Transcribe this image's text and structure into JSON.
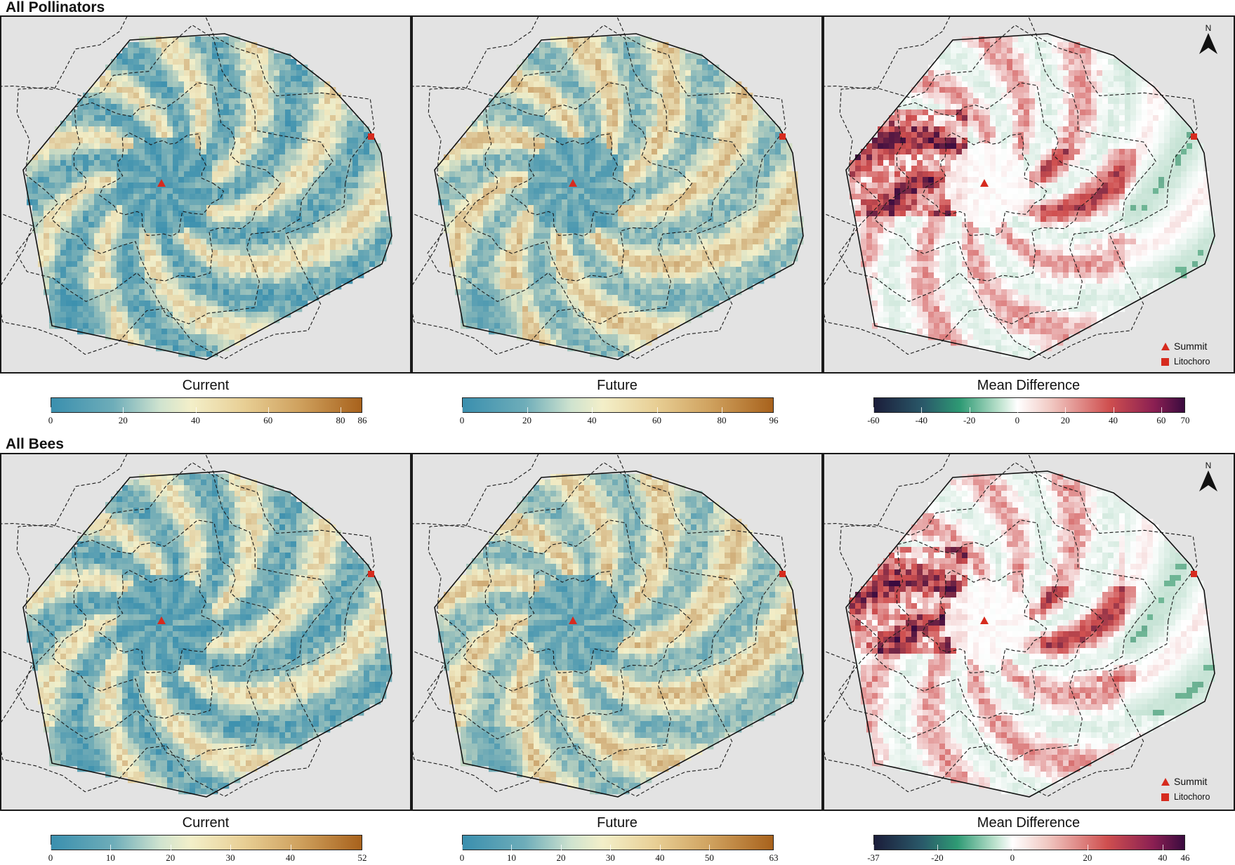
{
  "sections": [
    {
      "title": "All Pollinators",
      "panels": [
        {
          "type": "current",
          "legend_title": "Current",
          "ticks": [
            "0",
            "20",
            "40",
            "60",
            "80",
            "86"
          ],
          "tick_values": [
            0,
            20,
            40,
            60,
            80,
            86
          ],
          "min": 0,
          "max": 86
        },
        {
          "type": "future",
          "legend_title": "Future",
          "ticks": [
            "0",
            "20",
            "40",
            "60",
            "80",
            "96"
          ],
          "tick_values": [
            0,
            20,
            40,
            60,
            80,
            96
          ],
          "min": 0,
          "max": 96
        },
        {
          "type": "diff",
          "legend_title": "Mean Difference",
          "ticks": [
            "-60",
            "-40",
            "-20",
            "0",
            "20",
            "40",
            "60",
            "70"
          ],
          "tick_values": [
            -60,
            -40,
            -20,
            0,
            20,
            40,
            60,
            70
          ],
          "min": -60,
          "max": 70
        }
      ]
    },
    {
      "title": "All Bees",
      "panels": [
        {
          "type": "current",
          "legend_title": "Current",
          "ticks": [
            "0",
            "10",
            "20",
            "30",
            "40",
            "52"
          ],
          "tick_values": [
            0,
            10,
            20,
            30,
            40,
            52
          ],
          "min": 0,
          "max": 52
        },
        {
          "type": "future",
          "legend_title": "Future",
          "ticks": [
            "0",
            "10",
            "20",
            "30",
            "40",
            "50",
            "63"
          ],
          "tick_values": [
            0,
            10,
            20,
            30,
            40,
            50,
            63
          ],
          "min": 0,
          "max": 63
        },
        {
          "type": "diff",
          "legend_title": "Mean Difference",
          "ticks": [
            "-37",
            "-20",
            "0",
            "20",
            "40",
            "46"
          ],
          "tick_values": [
            -37,
            -20,
            0,
            20,
            40,
            46
          ],
          "min": -37,
          "max": 46
        }
      ]
    }
  ],
  "map_legend": {
    "summit": "Summit",
    "litochoro": "Litochoro"
  },
  "north_label": "N",
  "colors": {
    "marker": "#d62b1e",
    "seq_low": "#3a8fae",
    "seq_mid": "#f3efc9",
    "seq_high": "#a8621c",
    "div_neg": "#1b1d3a",
    "div_green": "#2e9a74",
    "div_zero": "#ffffff",
    "div_red": "#cf4f4f",
    "div_pos": "#3a0b3f",
    "panel_bg": "#e3e3e3"
  }
}
